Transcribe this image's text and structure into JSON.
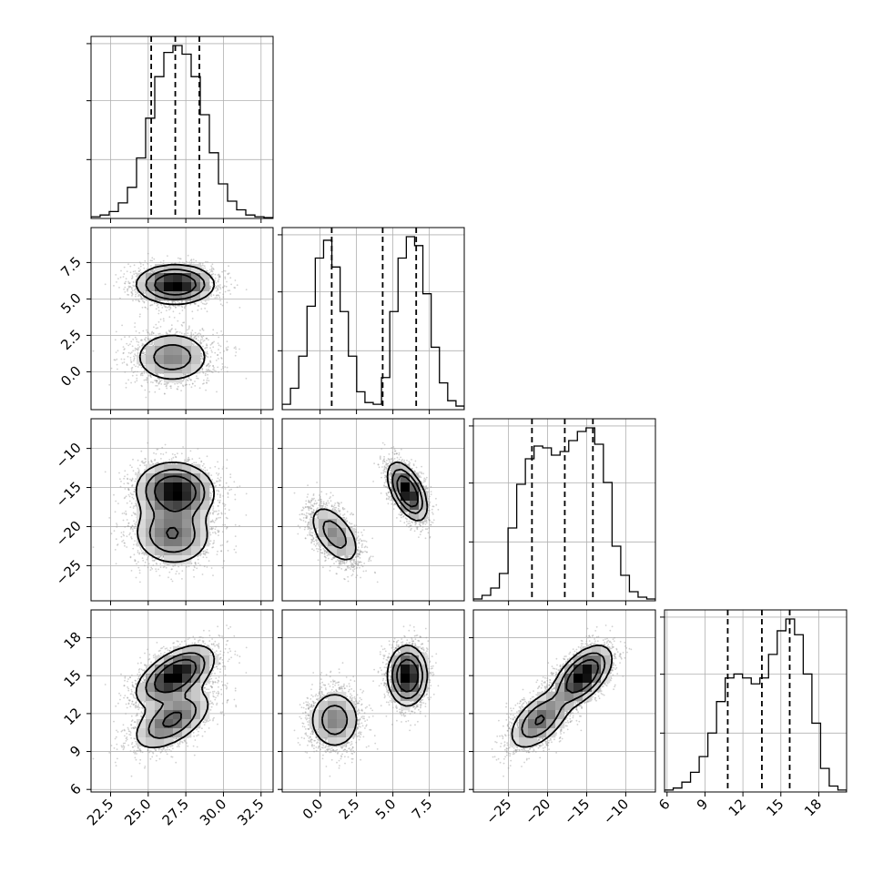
{
  "chart_data": {
    "type": "corner",
    "parameters": [
      {
        "range": [
          21.2,
          33.3
        ],
        "ticks": [
          22.5,
          25.0,
          27.5,
          30.0,
          32.5
        ],
        "tick_labels": [
          "22.5",
          "25.0",
          "27.5",
          "30.0",
          "32.5"
        ],
        "quantiles": [
          25.2,
          26.8,
          28.4
        ],
        "hist_counts": [
          1,
          2,
          4,
          9,
          18,
          35,
          58,
          82,
          96,
          100,
          95,
          82,
          60,
          38,
          20,
          10,
          5,
          2,
          1,
          0.5
        ]
      },
      {
        "range": [
          -2.6,
          9.9
        ],
        "ticks": [
          0.0,
          2.5,
          5.0,
          7.5
        ],
        "tick_labels": [
          "0.0",
          "2.5",
          "5.0",
          "7.5"
        ],
        "quantiles": [
          0.8,
          4.3,
          6.6
        ],
        "hist_counts": [
          3,
          12,
          30,
          58,
          85,
          95,
          80,
          55,
          30,
          10,
          4,
          3,
          18,
          55,
          85,
          97,
          92,
          65,
          35,
          15,
          5,
          2
        ]
      },
      {
        "range": [
          -29.5,
          -6.2
        ],
        "ticks": [
          -25,
          -20,
          -15,
          -10
        ],
        "tick_labels": [
          "−25",
          "−20",
          "−15",
          "−10"
        ],
        "quantiles": [
          -22.0,
          -17.8,
          -14.2
        ],
        "hist_counts": [
          1,
          3,
          7,
          15,
          40,
          64,
          78,
          85,
          84,
          80,
          82,
          88,
          93,
          95,
          86,
          65,
          30,
          14,
          5,
          2,
          1
        ]
      },
      {
        "range": [
          5.8,
          20.2
        ],
        "ticks": [
          6,
          9,
          12,
          15,
          18
        ],
        "tick_labels": [
          "6",
          "9",
          "12",
          "15",
          "18"
        ],
        "quantiles": [
          10.8,
          13.5,
          15.7
        ],
        "hist_counts": [
          1,
          2,
          5,
          10,
          18,
          30,
          46,
          58,
          60,
          58,
          55,
          58,
          70,
          82,
          88,
          80,
          60,
          35,
          12,
          3,
          1
        ]
      }
    ],
    "y_ticks": {
      "1": {
        "values": [
          0.0,
          2.5,
          5.0,
          7.5
        ],
        "labels": [
          "0.0",
          "2.5",
          "5.0",
          "7.5"
        ]
      },
      "2": {
        "values": [
          -25,
          -20,
          -15,
          -10
        ],
        "labels": [
          "−25",
          "−20",
          "−15",
          "−10"
        ]
      },
      "3": {
        "values": [
          6,
          9,
          12,
          15,
          18
        ],
        "labels": [
          "6",
          "9",
          "12",
          "15",
          "18"
        ]
      }
    },
    "modes": [
      {
        "weight": 0.6,
        "mean": [
          26.8,
          6.0,
          -15.5,
          15.0
        ],
        "sd": [
          1.25,
          0.65,
          1.8,
          1.15
        ]
      },
      {
        "weight": 0.4,
        "mean": [
          26.6,
          1.0,
          -21.0,
          11.5
        ],
        "sd": [
          1.3,
          0.9,
          2.0,
          1.2
        ]
      }
    ],
    "grid": true,
    "legend": "none"
  }
}
